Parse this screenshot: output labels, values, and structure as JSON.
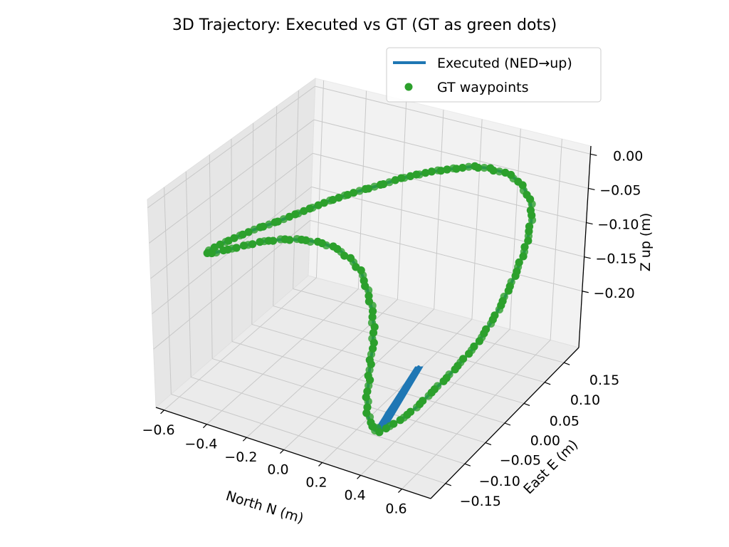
{
  "chart_data": {
    "type": "line3d+scatter3d",
    "title": "3D Trajectory: Executed vs GT (GT as green dots)",
    "axes": {
      "x": {
        "label": "North N (m)",
        "ticks": [
          "−0.6",
          "−0.4",
          "−0.2",
          "0.0",
          "0.2",
          "0.4",
          "0.6"
        ]
      },
      "y": {
        "label": "East E (m)",
        "ticks": [
          "−0.15",
          "−0.10",
          "−0.05",
          "0.00",
          "0.05",
          "0.10",
          "0.15"
        ]
      },
      "z": {
        "label": "Z up (m)",
        "ticks": [
          "−0.20",
          "−0.15",
          "−0.10",
          "−0.05",
          "0.00"
        ]
      }
    },
    "grid": true,
    "legend": {
      "placement": "top-right",
      "entries": [
        {
          "label": "Executed (NED→up)",
          "marker": "line",
          "color": "#1f77b4"
        },
        {
          "label": "GT waypoints",
          "marker": "dot",
          "color": "#2ca02c"
        }
      ]
    },
    "series": [
      {
        "name": "Executed (NED→up)",
        "color": "#1f77b4",
        "style": "line"
      },
      {
        "name": "GT waypoints",
        "color": "#2ca02c",
        "style": "scatter"
      }
    ]
  }
}
